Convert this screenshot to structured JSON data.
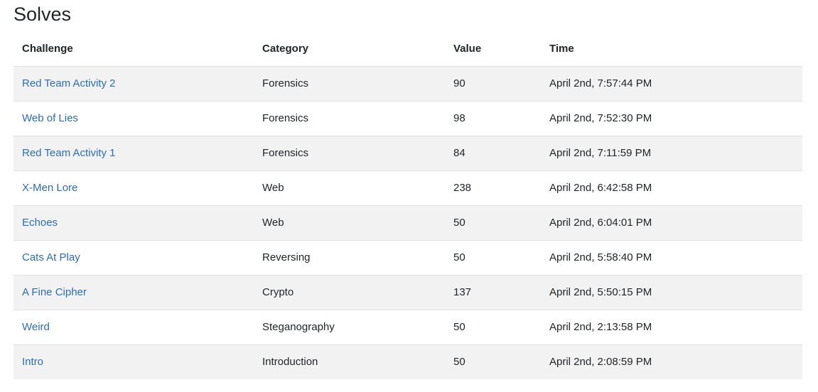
{
  "page": {
    "title": "Solves"
  },
  "table": {
    "headers": {
      "challenge": "Challenge",
      "category": "Category",
      "value": "Value",
      "time": "Time"
    },
    "rows": [
      {
        "challenge": "Red Team Activity 2",
        "category": "Forensics",
        "value": "90",
        "time": "April 2nd, 7:57:44 PM"
      },
      {
        "challenge": "Web of Lies",
        "category": "Forensics",
        "value": "98",
        "time": "April 2nd, 7:52:30 PM"
      },
      {
        "challenge": "Red Team Activity 1",
        "category": "Forensics",
        "value": "84",
        "time": "April 2nd, 7:11:59 PM"
      },
      {
        "challenge": "X-Men Lore",
        "category": "Web",
        "value": "238",
        "time": "April 2nd, 6:42:58 PM"
      },
      {
        "challenge": "Echoes",
        "category": "Web",
        "value": "50",
        "time": "April 2nd, 6:04:01 PM"
      },
      {
        "challenge": "Cats At Play",
        "category": "Reversing",
        "value": "50",
        "time": "April 2nd, 5:58:40 PM"
      },
      {
        "challenge": "A Fine Cipher",
        "category": "Crypto",
        "value": "137",
        "time": "April 2nd, 5:50:15 PM"
      },
      {
        "challenge": "Weird",
        "category": "Steganography",
        "value": "50",
        "time": "April 2nd, 2:13:58 PM"
      },
      {
        "challenge": "Intro",
        "category": "Introduction",
        "value": "50",
        "time": "April 2nd, 2:08:59 PM"
      }
    ]
  },
  "colors": {
    "link": "#2a6ebb",
    "stripe": "#f2f2f2",
    "border": "#dee2e6"
  }
}
